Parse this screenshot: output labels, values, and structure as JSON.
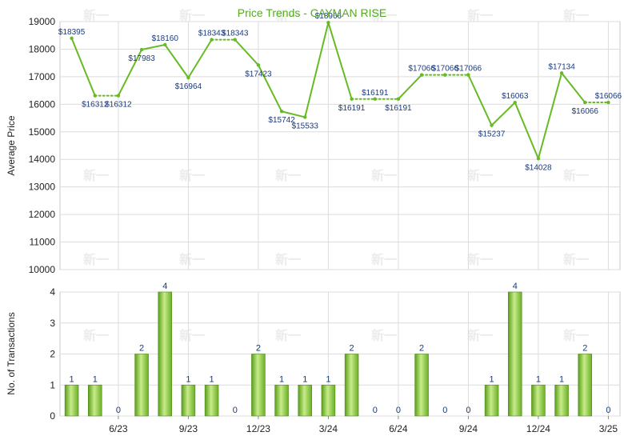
{
  "chart_data": [
    {
      "type": "line",
      "title": "Price Trends - CAYMAN RISE",
      "xlabel": "",
      "ylabel": "Average Price",
      "ylim": [
        10000,
        19000
      ],
      "yticks": [
        10000,
        11000,
        12000,
        13000,
        14000,
        15000,
        16000,
        17000,
        18000,
        19000
      ],
      "x_tick_labels": [
        "6/23",
        "9/23",
        "12/23",
        "3/24",
        "6/24",
        "9/24",
        "12/24",
        "3/25"
      ],
      "grid": true,
      "colors": {
        "line": "#66bb22",
        "label": "#1a3a7a",
        "title": "#55aa22",
        "grid": "#d8d8d8"
      },
      "series": [
        {
          "values": [
            18395,
            16312,
            16312,
            17983,
            18160,
            16964,
            18343,
            18343,
            17423,
            15742,
            15533,
            18966,
            16191,
            16191,
            16191,
            17066,
            17066,
            17066,
            15237,
            16063,
            14028,
            17134,
            16066,
            16066
          ],
          "has_transactions": [
            true,
            true,
            false,
            true,
            true,
            true,
            true,
            false,
            true,
            true,
            true,
            true,
            true,
            false,
            false,
            true,
            false,
            false,
            true,
            true,
            true,
            true,
            true,
            false
          ]
        }
      ]
    },
    {
      "type": "bar",
      "ylabel": "No. of Transactions",
      "xlabel": "",
      "ylim": [
        0,
        4
      ],
      "yticks": [
        0,
        1,
        2,
        3,
        4
      ],
      "x_tick_labels": [
        "6/23",
        "9/23",
        "12/23",
        "3/24",
        "6/24",
        "9/24",
        "12/24",
        "3/25"
      ],
      "grid": true,
      "colors": {
        "bar_light": "#c8ec8a",
        "bar_mid": "#8fcc3c",
        "bar_dark": "#5a9e1a",
        "label": "#1a3a7a"
      },
      "values": [
        1,
        1,
        0,
        2,
        4,
        1,
        1,
        0,
        2,
        1,
        1,
        1,
        2,
        0,
        0,
        2,
        0,
        0,
        1,
        4,
        1,
        1,
        2,
        0
      ]
    }
  ],
  "watermark": "新一"
}
